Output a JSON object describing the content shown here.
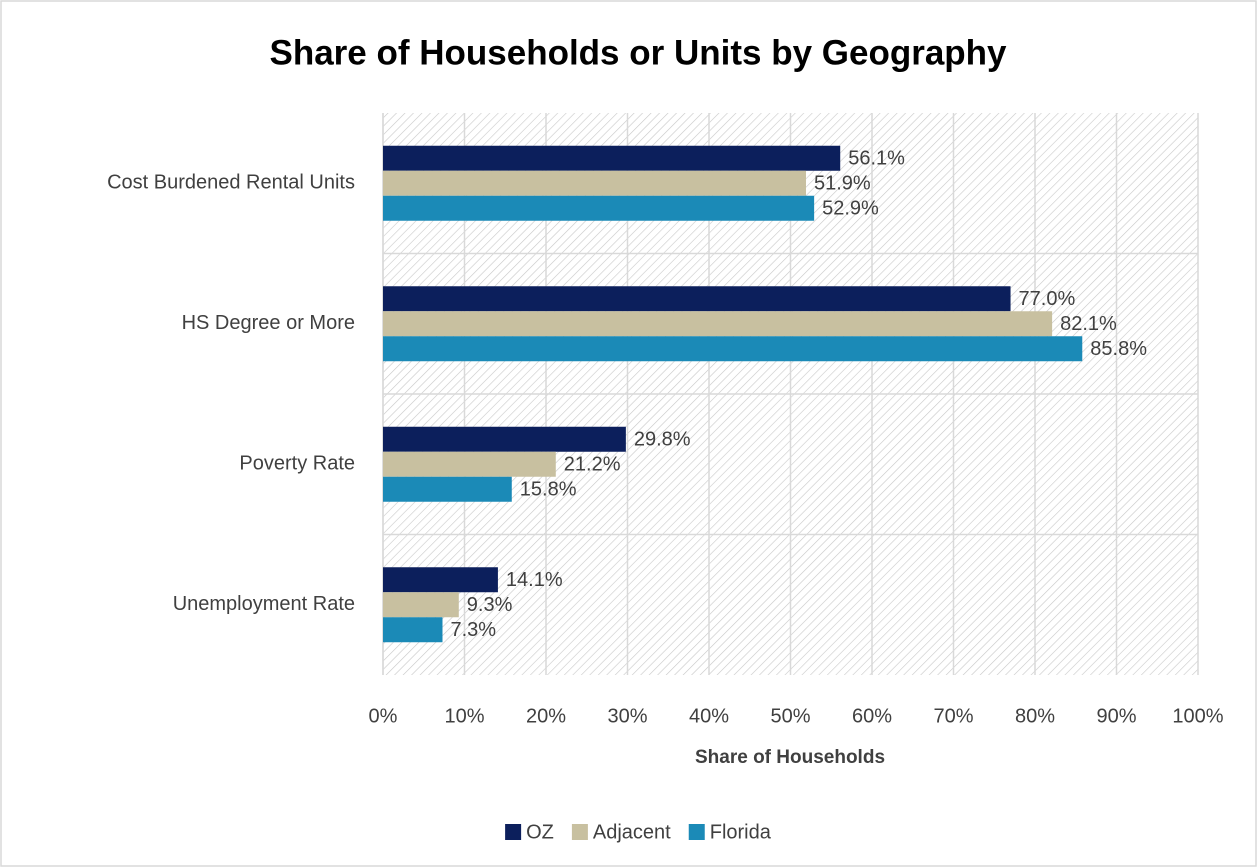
{
  "chart_data": {
    "type": "barh",
    "title": "Share of Households or Units by Geography",
    "categories": [
      "Cost Burdened Rental Units",
      "HS Degree or More",
      "Poverty Rate",
      "Unemployment Rate"
    ],
    "series": [
      {
        "name": "OZ",
        "color": "#0c1f5c",
        "values": [
          56.1,
          77.0,
          29.8,
          14.1
        ],
        "value_labels": [
          "56.1%",
          "77.0%",
          "29.8%",
          "14.1%"
        ]
      },
      {
        "name": "Adjacent",
        "color": "#c8c0a0",
        "values": [
          51.9,
          82.1,
          21.2,
          9.3
        ],
        "value_labels": [
          "51.9%",
          "82.1%",
          "21.2%",
          "9.3%"
        ]
      },
      {
        "name": "Florida",
        "color": "#1b8ab7",
        "values": [
          52.9,
          85.8,
          15.8,
          7.3
        ],
        "value_labels": [
          "52.9%",
          "85.8%",
          "15.8%",
          "7.3%"
        ]
      }
    ],
    "xlabel": "Share of Households",
    "xlim": [
      0,
      100
    ],
    "xticks": [
      {
        "value": 0,
        "label": "0%"
      },
      {
        "value": 10,
        "label": "10%"
      },
      {
        "value": 20,
        "label": "20%"
      },
      {
        "value": 30,
        "label": "30%"
      },
      {
        "value": 40,
        "label": "40%"
      },
      {
        "value": 50,
        "label": "50%"
      },
      {
        "value": 60,
        "label": "60%"
      },
      {
        "value": 70,
        "label": "70%"
      },
      {
        "value": 80,
        "label": "80%"
      },
      {
        "value": 90,
        "label": "90%"
      },
      {
        "value": 100,
        "label": "100%"
      }
    ],
    "grid": true,
    "legend": "bottom"
  }
}
